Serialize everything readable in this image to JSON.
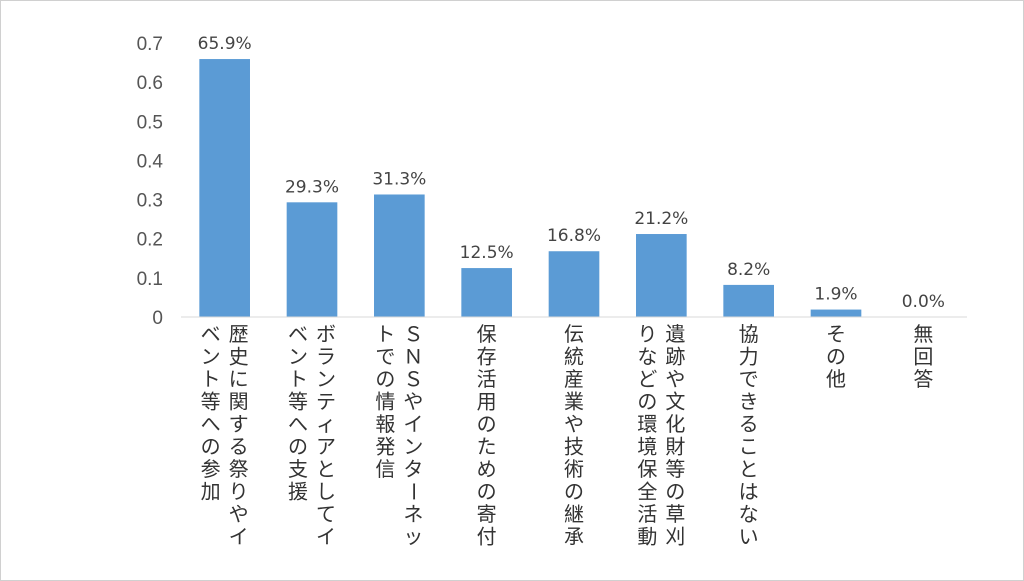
{
  "chart_data": {
    "type": "bar",
    "categories": [
      [
        "歴史に関する祭りやイ",
        "ベント等への参加"
      ],
      [
        "ボランティアとしてイ",
        "ベント等への支援"
      ],
      [
        "ＳＮＳやインターネッ",
        "トでの情報発信"
      ],
      [
        "保存活用のための寄付"
      ],
      [
        "伝統産業や技術の継承"
      ],
      [
        "遺跡や文化財等の草刈",
        "りなどの環境保全活動"
      ],
      [
        "協力できることはない"
      ],
      [
        "その他"
      ],
      [
        "無回答"
      ]
    ],
    "values": [
      0.659,
      0.293,
      0.313,
      0.125,
      0.168,
      0.212,
      0.082,
      0.019,
      0.0
    ],
    "data_labels": [
      "65.9%",
      "29.3%",
      "31.3%",
      "12.5%",
      "16.8%",
      "21.2%",
      "8.2%",
      "1.9%",
      "0.0%"
    ],
    "yticks": [
      "0",
      "0.1",
      "0.2",
      "0.3",
      "0.4",
      "0.5",
      "0.6",
      "0.7"
    ],
    "ylim": [
      0,
      0.7
    ],
    "bar_color": "#5b9bd5",
    "grid": false,
    "legend": "none",
    "category_label_orientation": "vertical"
  }
}
